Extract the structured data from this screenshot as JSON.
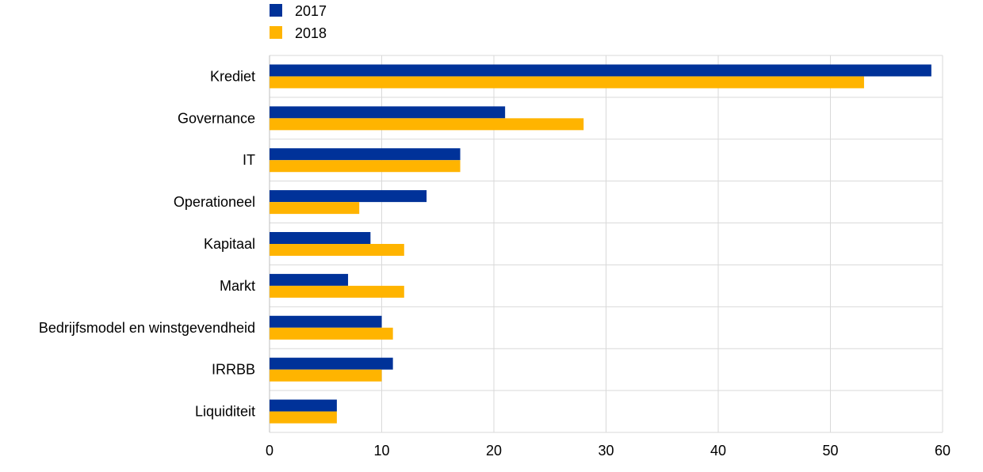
{
  "chart_data": {
    "type": "bar",
    "orientation": "horizontal",
    "categories": [
      "Krediet",
      "Governance",
      "IT",
      "Operationeel",
      "Kapitaal",
      "Markt",
      "Bedrijfsmodel en winstgevendheid",
      "IRRBB",
      "Liquiditeit"
    ],
    "series": [
      {
        "name": "2017",
        "color": "#003299",
        "values": [
          59,
          21,
          17,
          14,
          9,
          7,
          10,
          11,
          6
        ]
      },
      {
        "name": "2018",
        "color": "#FFB400",
        "values": [
          53,
          28,
          17,
          8,
          12,
          12,
          11,
          10,
          6
        ]
      }
    ],
    "xlim": [
      0,
      60
    ],
    "xticks": [
      0,
      10,
      20,
      30,
      40,
      50,
      60
    ],
    "xlabel": "",
    "ylabel": "",
    "grid": true,
    "legend_position": "top-left"
  }
}
